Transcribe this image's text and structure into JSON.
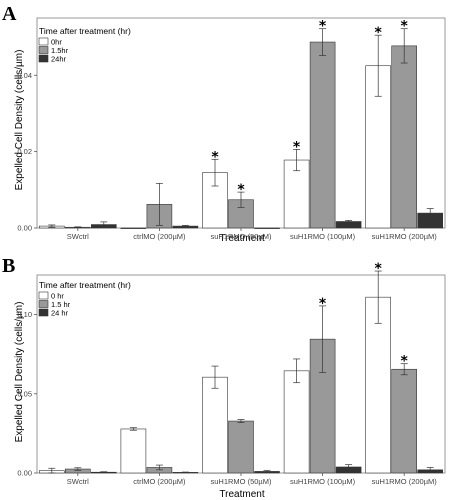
{
  "chart_data": [
    {
      "panel": "A",
      "type": "bar",
      "xlabel": "Treatment",
      "ylabel": "Expelled Cell Density (cells/µm)",
      "ylim": [
        0,
        0.055
      ],
      "yticks": [
        0,
        0.02,
        0.04
      ],
      "ytick_labels": [
        "0.00",
        "0.02",
        "0.04"
      ],
      "legend": {
        "title": "Time after treatment (hr)",
        "placement": "top-left"
      },
      "categories": [
        "SWctrl",
        "ctrlMO (200µM)",
        "suH1RMO (50µM)",
        "suH1RMO (100µM)",
        "suH1RMO (200µM)"
      ],
      "series": [
        {
          "name": "0hr",
          "color": "#ffffff",
          "values": [
            0.0005,
            0.0,
            0.0145,
            0.0178,
            0.0425
          ],
          "errors": [
            0.0003,
            0.0,
            0.0035,
            0.0028,
            0.008
          ],
          "significant": [
            false,
            false,
            true,
            true,
            true
          ]
        },
        {
          "name": "1.5hr",
          "color": "#999999",
          "values": [
            0.0002,
            0.0062,
            0.0074,
            0.0487,
            0.0477
          ],
          "errors": [
            0.0001,
            0.0055,
            0.002,
            0.0035,
            0.0045
          ],
          "significant": [
            false,
            false,
            true,
            true,
            true
          ]
        },
        {
          "name": "24hr",
          "color": "#333333",
          "values": [
            0.0009,
            0.0005,
            0.0,
            0.0017,
            0.0039
          ],
          "errors": [
            0.0007,
            0.0002,
            0.0,
            0.0003,
            0.0012
          ],
          "significant": [
            false,
            false,
            false,
            false,
            false
          ]
        }
      ]
    },
    {
      "panel": "B",
      "type": "bar",
      "xlabel": "Treatment",
      "ylabel": "Expelled Cell Density (cells/µm)",
      "ylim": [
        0,
        0.125
      ],
      "yticks": [
        0,
        0.05,
        0.1
      ],
      "ytick_labels": [
        "0.00",
        "0.05",
        "0.10"
      ],
      "legend": {
        "title": "Time after treatment (hr)",
        "placement": "top-left"
      },
      "categories": [
        "SWctrl",
        "ctrlMO (200µM)",
        "suH1RMO (50µM)",
        "suH1RMO (100µM)",
        "suH1RMO (200µM)"
      ],
      "series": [
        {
          "name": "0 hr",
          "color": "#ffffff",
          "values": [
            0.0015,
            0.0278,
            0.0605,
            0.0645,
            0.111
          ],
          "errors": [
            0.0015,
            0.0008,
            0.007,
            0.0075,
            0.0165
          ],
          "significant": [
            false,
            false,
            false,
            false,
            true
          ]
        },
        {
          "name": "1.5 hr",
          "color": "#999999",
          "values": [
            0.0025,
            0.0035,
            0.0328,
            0.0845,
            0.0655
          ],
          "errors": [
            0.0008,
            0.0015,
            0.001,
            0.021,
            0.0035
          ],
          "significant": [
            false,
            false,
            false,
            true,
            true
          ]
        },
        {
          "name": "24 hr",
          "color": "#333333",
          "values": [
            0.0005,
            0.0004,
            0.001,
            0.0038,
            0.002
          ],
          "errors": [
            0.0003,
            0.0002,
            0.0007,
            0.0015,
            0.0015
          ],
          "significant": [
            false,
            false,
            false,
            false,
            false
          ]
        }
      ]
    }
  ]
}
